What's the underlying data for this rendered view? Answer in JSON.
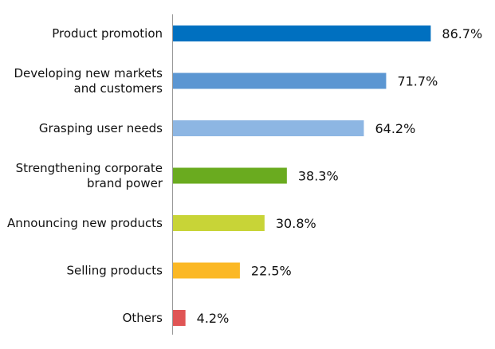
{
  "chart_data": {
    "type": "bar",
    "orientation": "horizontal",
    "title": "",
    "xlabel": "",
    "ylabel": "",
    "unit": "%",
    "xlim": [
      0,
      100
    ],
    "grid": false,
    "legend": "none",
    "categories": [
      [
        "Product promotion"
      ],
      [
        "Developing new markets",
        "and customers"
      ],
      [
        "Grasping user needs"
      ],
      [
        "Strengthening  corporate",
        "brand power"
      ],
      [
        "Announcing new products"
      ],
      [
        "Selling products"
      ],
      [
        "Others"
      ]
    ],
    "values": [
      86.7,
      71.7,
      64.2,
      38.3,
      30.8,
      22.5,
      4.2
    ],
    "value_labels": [
      "86.7%",
      "71.7%",
      "64.2%",
      "38.3%",
      "30.8%",
      "22.5%",
      "4.2%"
    ],
    "colors": [
      "#0070c0",
      "#5b96d2",
      "#8db6e3",
      "#6aab1f",
      "#c8d437",
      "#fbb825",
      "#e05555"
    ]
  }
}
